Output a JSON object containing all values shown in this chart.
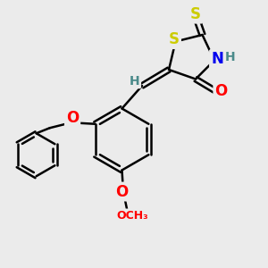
{
  "bg_color": "#ebebeb",
  "bond_color": "#000000",
  "bond_width": 1.8,
  "atom_colors": {
    "S": "#cccc00",
    "N": "#0000ee",
    "O": "#ff0000",
    "H": "#4a8a8a"
  },
  "font_size_atom": 11,
  "fig_w": 3.0,
  "fig_h": 3.0,
  "dpi": 100
}
